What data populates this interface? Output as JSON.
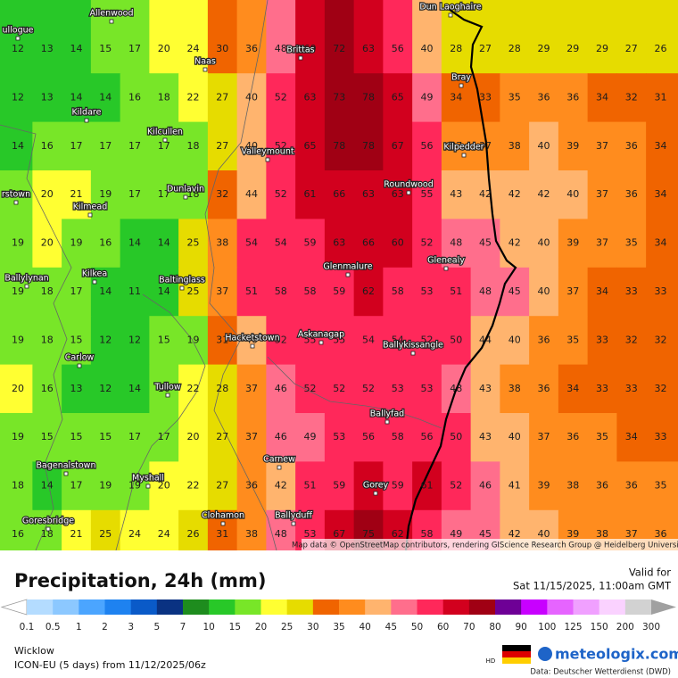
{
  "map": {
    "grid": {
      "rows": [
        [
          12,
          13,
          14,
          15,
          17,
          20,
          24,
          30,
          36,
          48,
          60,
          72,
          63,
          56,
          40,
          28,
          27,
          28,
          29,
          29,
          29,
          27,
          26
        ],
        [
          12,
          13,
          14,
          14,
          16,
          18,
          22,
          27,
          40,
          52,
          63,
          73,
          78,
          65,
          49,
          34,
          33,
          35,
          36,
          36,
          34,
          32,
          31
        ],
        [
          14,
          16,
          17,
          17,
          17,
          17,
          18,
          27,
          40,
          52,
          65,
          78,
          78,
          67,
          56,
          37,
          37,
          38,
          40,
          39,
          37,
          36,
          34
        ],
        [
          18,
          20,
          21,
          19,
          17,
          17,
          18,
          32,
          44,
          52,
          61,
          66,
          63,
          63,
          55,
          43,
          42,
          42,
          42,
          40,
          37,
          36,
          34
        ],
        [
          19,
          20,
          19,
          16,
          14,
          14,
          25,
          38,
          54,
          54,
          59,
          63,
          66,
          60,
          52,
          48,
          45,
          42,
          40,
          39,
          37,
          35,
          34
        ],
        [
          19,
          18,
          17,
          14,
          11,
          14,
          25,
          37,
          51,
          58,
          58,
          59,
          62,
          58,
          53,
          51,
          48,
          45,
          40,
          37,
          34,
          33,
          33
        ],
        [
          19,
          18,
          15,
          12,
          12,
          15,
          19,
          31,
          40,
          52,
          55,
          55,
          54,
          54,
          52,
          50,
          44,
          40,
          36,
          35,
          33,
          32,
          32
        ],
        [
          20,
          16,
          13,
          12,
          14,
          16,
          22,
          28,
          37,
          46,
          52,
          52,
          52,
          53,
          53,
          48,
          43,
          38,
          36,
          34,
          33,
          33,
          32
        ],
        [
          19,
          15,
          15,
          15,
          17,
          17,
          20,
          27,
          37,
          46,
          49,
          53,
          56,
          58,
          56,
          50,
          43,
          40,
          37,
          36,
          35,
          34,
          33
        ],
        [
          18,
          14,
          17,
          19,
          19,
          20,
          22,
          27,
          36,
          42,
          51,
          59,
          60,
          59,
          61,
          52,
          46,
          41,
          39,
          38,
          36,
          36,
          35
        ],
        [
          16,
          18,
          21,
          25,
          24,
          24,
          26,
          31,
          38,
          48,
          53,
          67,
          75,
          62,
          58,
          49,
          45,
          42,
          40,
          39,
          38,
          37,
          36
        ]
      ]
    },
    "places": [
      "Allenwood",
      "ullogue",
      "Naas",
      "Brittas",
      "Dun Laoghaire",
      "Bray",
      "Kildare",
      "Kilcullen",
      "Valleymount",
      "Kilpedder",
      "Roundwood",
      "rstown",
      "Dunlavin",
      "Kilmead",
      "Glenmalure",
      "Glenealy",
      "Kilkea",
      "Ballylynan",
      "Baltinglass",
      "Hacketstown",
      "Askanagap",
      "Ballykissangle",
      "Carlow",
      "Tullow",
      "Ballyfad",
      "Carnew",
      "Bagenalstown",
      "Myshall",
      "Gorey",
      "Goresbridge",
      "Clohamon",
      "Ballyduff"
    ],
    "attribution": "Map data © OpenStreetMap contributors, rendering GIScience Research Group @ Heidelberg University"
  },
  "footer": {
    "title": "Precipitation, 24h (mm)",
    "valid_label": "Valid for",
    "valid_time": "Sat 11/15/2025, 11:00am GMT",
    "region": "Wicklow",
    "model": "ICON-EU (5 days) from 11/12/2025/06z",
    "hd": "HD",
    "brand": "meteologix.com",
    "source": "Data: Deutscher Wetterdienst (DWD)"
  },
  "legend": {
    "ticks": [
      0.1,
      0.5,
      1,
      2,
      3,
      5,
      7,
      10,
      15,
      20,
      25,
      30,
      35,
      40,
      45,
      50,
      60,
      70,
      80,
      90,
      100,
      125,
      150,
      200,
      300
    ],
    "colors": [
      "#b4dcff",
      "#8cc8ff",
      "#4ba5ff",
      "#1e82f0",
      "#0a5ac8",
      "#0a3282",
      "#1e8c1e",
      "#28c828",
      "#78e628",
      "#ffff32",
      "#e6dc00",
      "#f06400",
      "#ff8c1e",
      "#ffb46e",
      "#ff6e8c",
      "#ff285a",
      "#d2001e",
      "#a00014",
      "#6e0096",
      "#c800ff",
      "#e664ff",
      "#f0a0ff",
      "#fad2ff",
      "#d2d2d2"
    ],
    "under_color": "#ffffff",
    "over_color": "#a0a0a0"
  }
}
